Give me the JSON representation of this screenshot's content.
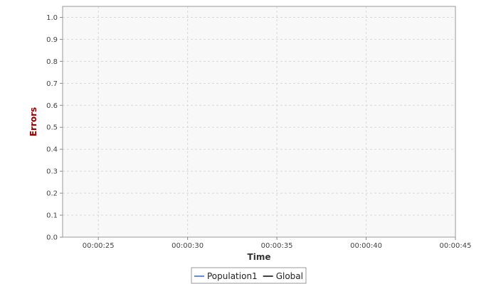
{
  "chart_data": {
    "type": "line",
    "title": "",
    "xlabel": "Time",
    "ylabel": "Errors",
    "xlim": [
      "00:00:23",
      "00:00:45"
    ],
    "ylim": [
      0.0,
      1.05
    ],
    "x_ticks": [
      "00:00:25",
      "00:00:30",
      "00:00:35",
      "00:00:40",
      "00:00:45"
    ],
    "y_ticks": [
      "0.0",
      "0.1",
      "0.2",
      "0.3",
      "0.4",
      "0.5",
      "0.6",
      "0.7",
      "0.8",
      "0.9",
      "1.0"
    ],
    "grid": true,
    "legend_position": "bottom",
    "series": [
      {
        "name": "Population1",
        "color": "#3366cc",
        "points": []
      },
      {
        "name": "Global",
        "color": "#000000",
        "points": []
      }
    ],
    "colors": {
      "plot_background": "#f8f8f8",
      "grid": "#d8d8d8",
      "axis_title_y": "#990000",
      "axis_title_x": "#333333"
    }
  }
}
